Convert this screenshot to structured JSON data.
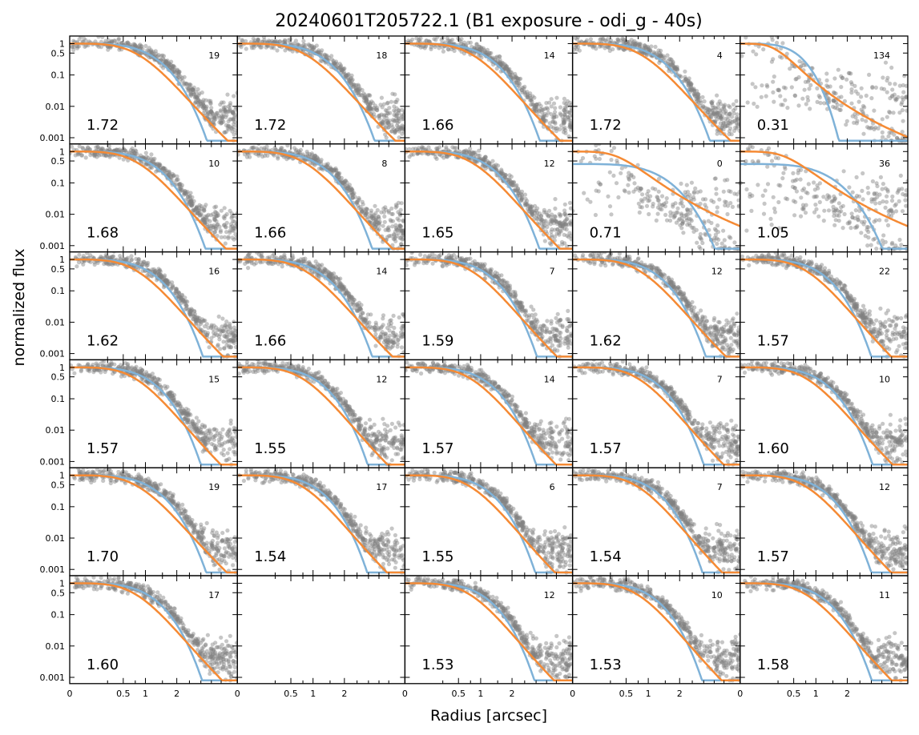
{
  "title": "20240601T205722.1 (B1 exposure - odi_g - 40s)",
  "xlabel": "Radius [arcsec]",
  "ylabel": "normalized flux",
  "colors": {
    "points": "#808080",
    "model_a": "#7fb2d8",
    "model_b": "#f58a34",
    "axes": "#000000"
  },
  "chart_data": {
    "type": "scatter",
    "title": "20240601T205722.1 (B1 exposure - odi_g - 40s)",
    "xlabel": "Radius [arcsec]",
    "ylabel": "normalized flux",
    "x_scale": "sqrt",
    "y_scale": "log",
    "xlim": [
      0,
      4.9
    ],
    "ylim": [
      0.0008,
      1.3
    ],
    "x_ticks": [
      0,
      0.5,
      1,
      2
    ],
    "x_tick_labels": [
      "0",
      "0.5",
      "1",
      "2"
    ],
    "y_ticks": [
      1,
      0.5,
      0.1,
      0.01,
      0.001
    ],
    "y_tick_labels": [
      "1",
      "0.5",
      "0.1",
      "0.01",
      "0.001"
    ],
    "grid_rows": 6,
    "grid_cols": 5,
    "panels": [
      {
        "fwhm": "1.72",
        "count": "19"
      },
      {
        "fwhm": "1.72",
        "count": "18"
      },
      {
        "fwhm": "1.66",
        "count": "14"
      },
      {
        "fwhm": "1.72",
        "count": "4"
      },
      {
        "fwhm": "0.31",
        "count": "134"
      },
      {
        "fwhm": "1.68",
        "count": "10"
      },
      {
        "fwhm": "1.66",
        "count": "8"
      },
      {
        "fwhm": "1.65",
        "count": "12"
      },
      {
        "fwhm": "0.71",
        "count": "0"
      },
      {
        "fwhm": "1.05",
        "count": "36"
      },
      {
        "fwhm": "1.62",
        "count": "16"
      },
      {
        "fwhm": "1.66",
        "count": "14"
      },
      {
        "fwhm": "1.59",
        "count": "7"
      },
      {
        "fwhm": "1.62",
        "count": "12"
      },
      {
        "fwhm": "1.57",
        "count": "22"
      },
      {
        "fwhm": "1.57",
        "count": "15"
      },
      {
        "fwhm": "1.55",
        "count": "12"
      },
      {
        "fwhm": "1.57",
        "count": "14"
      },
      {
        "fwhm": "1.57",
        "count": "7"
      },
      {
        "fwhm": "1.60",
        "count": "10"
      },
      {
        "fwhm": "1.70",
        "count": "19"
      },
      {
        "fwhm": "1.54",
        "count": "17"
      },
      {
        "fwhm": "1.55",
        "count": "6"
      },
      {
        "fwhm": "1.54",
        "count": "7"
      },
      {
        "fwhm": "1.57",
        "count": "12"
      },
      {
        "fwhm": "1.60",
        "count": "17"
      },
      {
        "fwhm": "",
        "count": "",
        "empty": true
      },
      {
        "fwhm": "1.53",
        "count": "12"
      },
      {
        "fwhm": "1.53",
        "count": "10"
      },
      {
        "fwhm": "1.58",
        "count": "11"
      }
    ]
  }
}
